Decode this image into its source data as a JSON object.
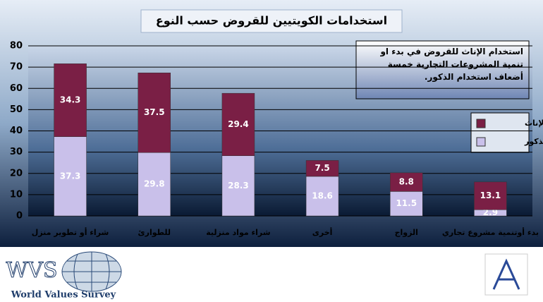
{
  "chart_data": {
    "type": "stacked_bar",
    "title": "استخدامات الكويتيين للقروض حسب النوع",
    "categories": [
      "شراء أو تطوير منزل",
      "للطوارئ",
      "شراء مواد منزلية",
      "أخرى",
      "الزواج",
      "بدء أوتنمية مشروع تجاري"
    ],
    "series": [
      {
        "name": "الذكور",
        "color": "#c9c0ea",
        "values": [
          37.3,
          29.8,
          28.3,
          18.6,
          11.5,
          2.9
        ]
      },
      {
        "name": "الإناث",
        "color": "#7a1f45",
        "values": [
          34.3,
          37.5,
          29.4,
          7.5,
          8.8,
          13.1
        ]
      }
    ],
    "ylim": [
      0,
      80
    ],
    "yticks": [
      0,
      10,
      20,
      30,
      40,
      50,
      60,
      70,
      80
    ],
    "grid": true,
    "annotation": "استخدام الإناث للقروض في بدء او تنمية المشروعات التجارية خمسة أضعاف استخدام الذكور.",
    "legend": "right"
  },
  "logo": {
    "acronym": "WVS",
    "name": "World Values Survey"
  }
}
